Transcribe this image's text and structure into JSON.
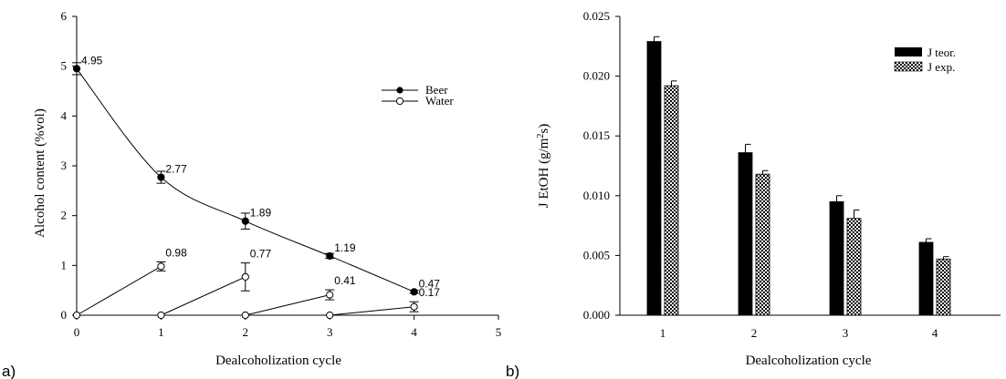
{
  "panel_labels": {
    "a": "a)",
    "b": "b)"
  },
  "chart_data": [
    {
      "type": "line",
      "xlabel": "Dealcoholization cycle",
      "ylabel": "Alcohol content (%vol)",
      "xlim": [
        0,
        5
      ],
      "ylim": [
        0,
        6
      ],
      "xticks": [
        "0",
        "1",
        "2",
        "3",
        "4",
        "5"
      ],
      "yticks": [
        "0",
        "1",
        "2",
        "3",
        "4",
        "5",
        "6"
      ],
      "grid": false,
      "legend_position": "top-right",
      "series": [
        {
          "name": "Beer",
          "marker": "filled-circle",
          "points": [
            {
              "x": 0,
              "y": 4.95,
              "err": 0.12,
              "label": "4.95"
            },
            {
              "x": 1,
              "y": 2.77,
              "err": 0.12,
              "label": "2.77"
            },
            {
              "x": 2,
              "y": 1.89,
              "err": 0.16,
              "label": "1.89"
            },
            {
              "x": 3,
              "y": 1.19,
              "err": 0.05,
              "label": "1.19"
            },
            {
              "x": 4,
              "y": 0.47,
              "err": 0.03,
              "label": "0.47"
            }
          ]
        },
        {
          "name": "Water",
          "marker": "open-circle",
          "segments": [
            [
              {
                "x": 0,
                "y": 0
              },
              {
                "x": 1,
                "y": 0.98,
                "err": 0.09,
                "label": "0.98"
              }
            ],
            [
              {
                "x": 1,
                "y": 0
              },
              {
                "x": 2,
                "y": 0.77,
                "err": 0.28,
                "label": "0.77"
              }
            ],
            [
              {
                "x": 2,
                "y": 0
              },
              {
                "x": 3,
                "y": 0.41,
                "err": 0.1,
                "label": "0.41"
              }
            ],
            [
              {
                "x": 3,
                "y": 0
              },
              {
                "x": 4,
                "y": 0.17,
                "err": 0.1,
                "label": "0.17"
              }
            ]
          ]
        }
      ]
    },
    {
      "type": "bar",
      "xlabel": "Dealcoholization cycle",
      "ylabel_main": "J EtOH  (g/m",
      "ylabel_sup": "2",
      "ylabel_tail": "s)",
      "categories": [
        "1",
        "2",
        "3",
        "4"
      ],
      "ylim": [
        0,
        0.025
      ],
      "yticks": [
        "0.000",
        "0.005",
        "0.010",
        "0.015",
        "0.020",
        "0.025"
      ],
      "grid": false,
      "legend_position": "top-right",
      "series": [
        {
          "name": "J teor.",
          "fill": "solid-black",
          "values": [
            0.0229,
            0.0136,
            0.0095,
            0.0061
          ],
          "errors": [
            0.0004,
            0.0007,
            0.0005,
            0.0003
          ]
        },
        {
          "name": "J exp.",
          "fill": "checkerboard",
          "values": [
            0.0192,
            0.0118,
            0.0081,
            0.0047
          ],
          "errors": [
            0.0004,
            0.0003,
            0.0007,
            0.0002
          ]
        }
      ]
    }
  ]
}
